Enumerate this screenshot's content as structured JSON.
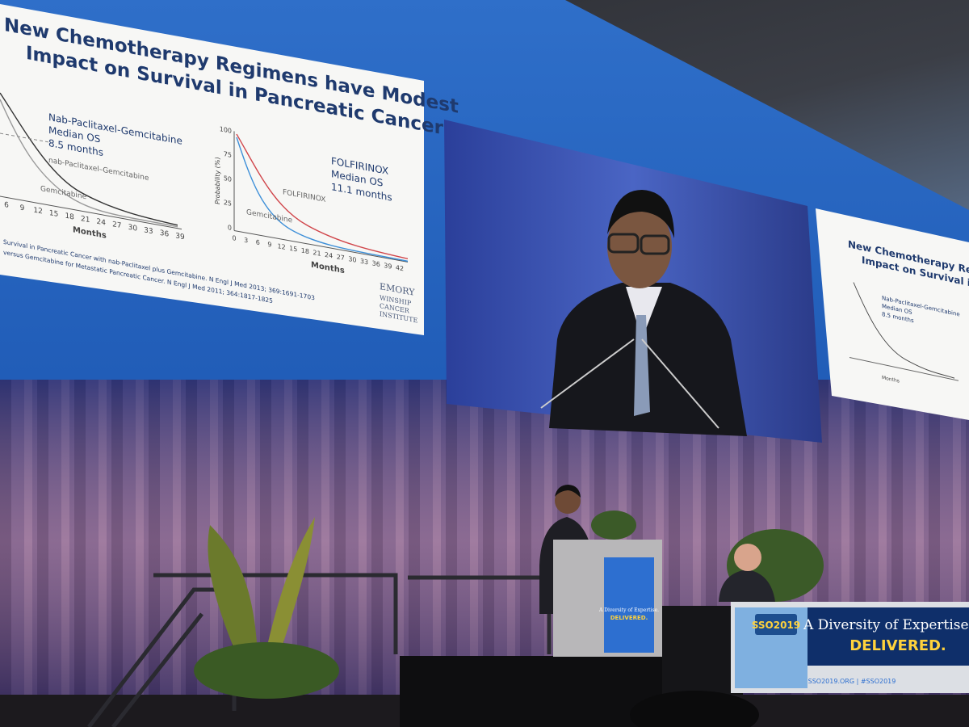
{
  "main_slide": {
    "title": [
      "New Chemotherapy Regimens have Modest",
      "Impact on Survival in Pancreatic  Cancer"
    ],
    "left_plot": {
      "legend": [
        "Nab-Paclitaxel-Gemcitabine",
        "Median OS",
        "8.5 months"
      ],
      "curve_labels": [
        "nab-Paclitaxel–Gemcitabine",
        "Gemcitabine"
      ],
      "x_ticks": [
        "6",
        "9",
        "12",
        "15",
        "18",
        "21",
        "24",
        "27",
        "30",
        "33",
        "36",
        "39"
      ],
      "x_label": "Months"
    },
    "right_plot": {
      "y_label": "Probability (%)",
      "y_ticks": [
        "100",
        "75",
        "50",
        "25",
        "0"
      ],
      "x_ticks": [
        "0",
        "3",
        "6",
        "9",
        "12",
        "15",
        "18",
        "21",
        "24",
        "27",
        "30",
        "33",
        "36",
        "39",
        "42"
      ],
      "x_label": "Months",
      "curve_labels": [
        "FOLFIRINOX",
        "Gemcitabine"
      ],
      "legend": [
        "FOLFIRINOX",
        "Median OS",
        "11.1 months"
      ]
    },
    "references": [
      "Survival in Pancreatic Cancer with nab-Paclitaxel plus Gemcitabine. N Engl J Med 2013; 369:1691-1703",
      "versus Gemcitabine for Metastatic Pancreatic Cancer. N Engl J Med 2011; 364:1817-1825"
    ],
    "logo": [
      "EMORY",
      "WINSHIP",
      "CANCER",
      "INSTITUTE"
    ]
  },
  "side_slide": {
    "title": [
      "New Chemotherapy Regimens h",
      "Impact on Survival in Pancrea"
    ],
    "legend": [
      "Nab-Paclitaxel-Gemcitabine",
      "Median OS",
      "8.5 months"
    ],
    "x_label": "Months"
  },
  "podium_sign": [
    "A Diversity of Expertise.",
    "DELIVERED."
  ],
  "banner": {
    "logo": "SSO2019",
    "tagline": "A Diversity of Expertise.",
    "highlight": "DELIVERED.",
    "footer": "SSO2019.ORG | #SSO2019"
  }
}
